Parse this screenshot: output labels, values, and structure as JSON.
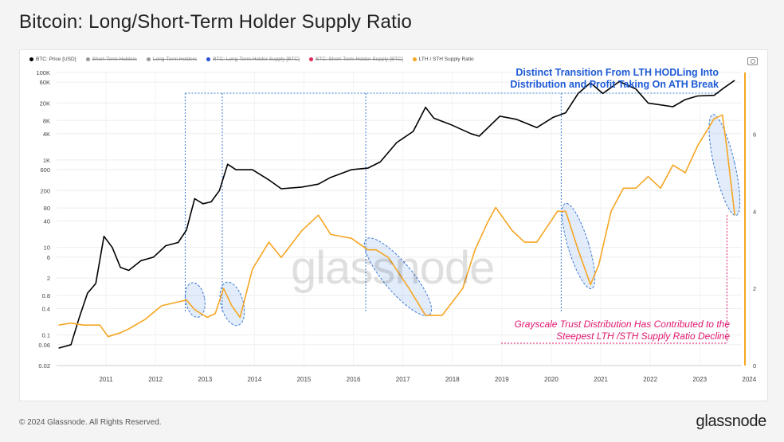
{
  "title": "Bitcoin: Long/Short-Term Holder Supply Ratio",
  "footer": {
    "copyright": "© 2024 Glassnode. All Rights Reserved.",
    "brand": "glassnode"
  },
  "watermark": "glassnode",
  "legend": [
    {
      "label": "BTC: Price [USD]",
      "color": "#000000",
      "active": true
    },
    {
      "label": "Short-Term Holders",
      "color": "#999999",
      "active": false
    },
    {
      "label": "Long-Term Holders",
      "color": "#999999",
      "active": false
    },
    {
      "label": "BTC: Long-Term Holder Supply [BTC]",
      "color": "#2b4fd6",
      "active": false
    },
    {
      "label": "BTC: Short-Term Holder Supply [BTC]",
      "color": "#e0285a",
      "active": false
    },
    {
      "label": "LTH / STH Supply Ratio",
      "color": "#f5a623",
      "active": true
    }
  ],
  "annotations": {
    "lth_transition": "Distinct Transition From LTH HODLing Into Distribution and Profit Taking On ATH Break",
    "grayscale": "Grayscale Trust Distribution Has Contributed to the Steepest LTH /STH Supply Ratio Decline"
  },
  "chart_data": {
    "type": "line",
    "title": "Bitcoin: Long/Short-Term Holder Supply Ratio",
    "x_ticks": [
      "2011",
      "2012",
      "2013",
      "2014",
      "2015",
      "2016",
      "2017",
      "2018",
      "2019",
      "2020",
      "2021",
      "2022",
      "2023",
      "2024"
    ],
    "y_left_ticks": [
      "100K",
      "60K",
      "20K",
      "8K",
      "4K",
      "1K",
      "600",
      "200",
      "80",
      "40",
      "10",
      "6",
      "2",
      "0.8",
      "0.4",
      "0.1",
      "0.06",
      "0.02"
    ],
    "y_left_scale": "log",
    "y_left_range": [
      0.02,
      100000
    ],
    "y_right_ticks": [
      "6",
      "4",
      "2",
      "0"
    ],
    "y_right_range": [
      0,
      7.6
    ],
    "grid": true,
    "series": [
      {
        "name": "BTC: Price [USD]",
        "color": "#000000",
        "axis": "left",
        "points": [
          [
            "2010-07",
            0.05
          ],
          [
            "2010-10",
            0.06
          ],
          [
            "2010-12",
            0.25
          ],
          [
            "2011-02",
            0.9
          ],
          [
            "2011-04",
            1.5
          ],
          [
            "2011-06",
            18
          ],
          [
            "2011-08",
            10
          ],
          [
            "2011-10",
            3.5
          ],
          [
            "2011-12",
            3
          ],
          [
            "2012-03",
            5
          ],
          [
            "2012-06",
            6
          ],
          [
            "2012-09",
            11
          ],
          [
            "2012-12",
            13
          ],
          [
            "2013-02",
            25
          ],
          [
            "2013-04",
            130
          ],
          [
            "2013-06",
            100
          ],
          [
            "2013-08",
            110
          ],
          [
            "2013-10",
            200
          ],
          [
            "2013-12",
            800
          ],
          [
            "2014-02",
            600
          ],
          [
            "2014-06",
            600
          ],
          [
            "2014-10",
            350
          ],
          [
            "2015-01",
            220
          ],
          [
            "2015-06",
            240
          ],
          [
            "2015-10",
            280
          ],
          [
            "2016-01",
            400
          ],
          [
            "2016-06",
            600
          ],
          [
            "2016-10",
            650
          ],
          [
            "2017-01",
            900
          ],
          [
            "2017-05",
            2500
          ],
          [
            "2017-09",
            4500
          ],
          [
            "2017-12",
            16000
          ],
          [
            "2018-02",
            9000
          ],
          [
            "2018-06",
            6500
          ],
          [
            "2018-11",
            4000
          ],
          [
            "2019-01",
            3500
          ],
          [
            "2019-06",
            10000
          ],
          [
            "2019-10",
            8500
          ],
          [
            "2020-03",
            5500
          ],
          [
            "2020-07",
            9500
          ],
          [
            "2020-10",
            12000
          ],
          [
            "2021-01",
            33000
          ],
          [
            "2021-04",
            58000
          ],
          [
            "2021-07",
            33000
          ],
          [
            "2021-11",
            62000
          ],
          [
            "2022-03",
            42000
          ],
          [
            "2022-06",
            20000
          ],
          [
            "2022-12",
            16500
          ],
          [
            "2023-03",
            24000
          ],
          [
            "2023-06",
            29000
          ],
          [
            "2023-10",
            30000
          ],
          [
            "2023-12",
            42000
          ],
          [
            "2024-03",
            66000
          ]
        ]
      },
      {
        "name": "LTH / STH Supply Ratio",
        "color": "#f5a623",
        "axis": "right",
        "points": [
          [
            "2010-07",
            1.05
          ],
          [
            "2010-10",
            1.1
          ],
          [
            "2011-01",
            1.05
          ],
          [
            "2011-05",
            1.05
          ],
          [
            "2011-07",
            0.75
          ],
          [
            "2011-10",
            0.85
          ],
          [
            "2011-12",
            0.95
          ],
          [
            "2012-04",
            1.2
          ],
          [
            "2012-08",
            1.55
          ],
          [
            "2012-12",
            1.65
          ],
          [
            "2013-02",
            1.7
          ],
          [
            "2013-04",
            1.45
          ],
          [
            "2013-07",
            1.25
          ],
          [
            "2013-09",
            1.35
          ],
          [
            "2013-11",
            2.0
          ],
          [
            "2014-01",
            1.55
          ],
          [
            "2014-03",
            1.25
          ],
          [
            "2014-06",
            2.5
          ],
          [
            "2014-10",
            3.2
          ],
          [
            "2015-01",
            2.8
          ],
          [
            "2015-06",
            3.5
          ],
          [
            "2015-10",
            3.9
          ],
          [
            "2016-01",
            3.4
          ],
          [
            "2016-06",
            3.3
          ],
          [
            "2016-10",
            3.0
          ],
          [
            "2016-12",
            3.0
          ],
          [
            "2017-03",
            2.8
          ],
          [
            "2017-08",
            2.0
          ],
          [
            "2017-12",
            1.3
          ],
          [
            "2018-04",
            1.3
          ],
          [
            "2018-09",
            2.0
          ],
          [
            "2018-12",
            3.0
          ],
          [
            "2019-03",
            3.7
          ],
          [
            "2019-05",
            4.1
          ],
          [
            "2019-09",
            3.5
          ],
          [
            "2019-12",
            3.2
          ],
          [
            "2020-03",
            3.2
          ],
          [
            "2020-08",
            4.0
          ],
          [
            "2020-10",
            4.0
          ],
          [
            "2021-01",
            3.0
          ],
          [
            "2021-04",
            2.1
          ],
          [
            "2021-06",
            2.6
          ],
          [
            "2021-09",
            4.0
          ],
          [
            "2021-12",
            4.6
          ],
          [
            "2022-03",
            4.6
          ],
          [
            "2022-06",
            4.9
          ],
          [
            "2022-09",
            4.6
          ],
          [
            "2022-12",
            5.2
          ],
          [
            "2023-03",
            5.0
          ],
          [
            "2023-06",
            5.7
          ],
          [
            "2023-10",
            6.4
          ],
          [
            "2023-12",
            6.5
          ],
          [
            "2024-01",
            5.7
          ],
          [
            "2024-03",
            3.9
          ]
        ]
      }
    ]
  }
}
